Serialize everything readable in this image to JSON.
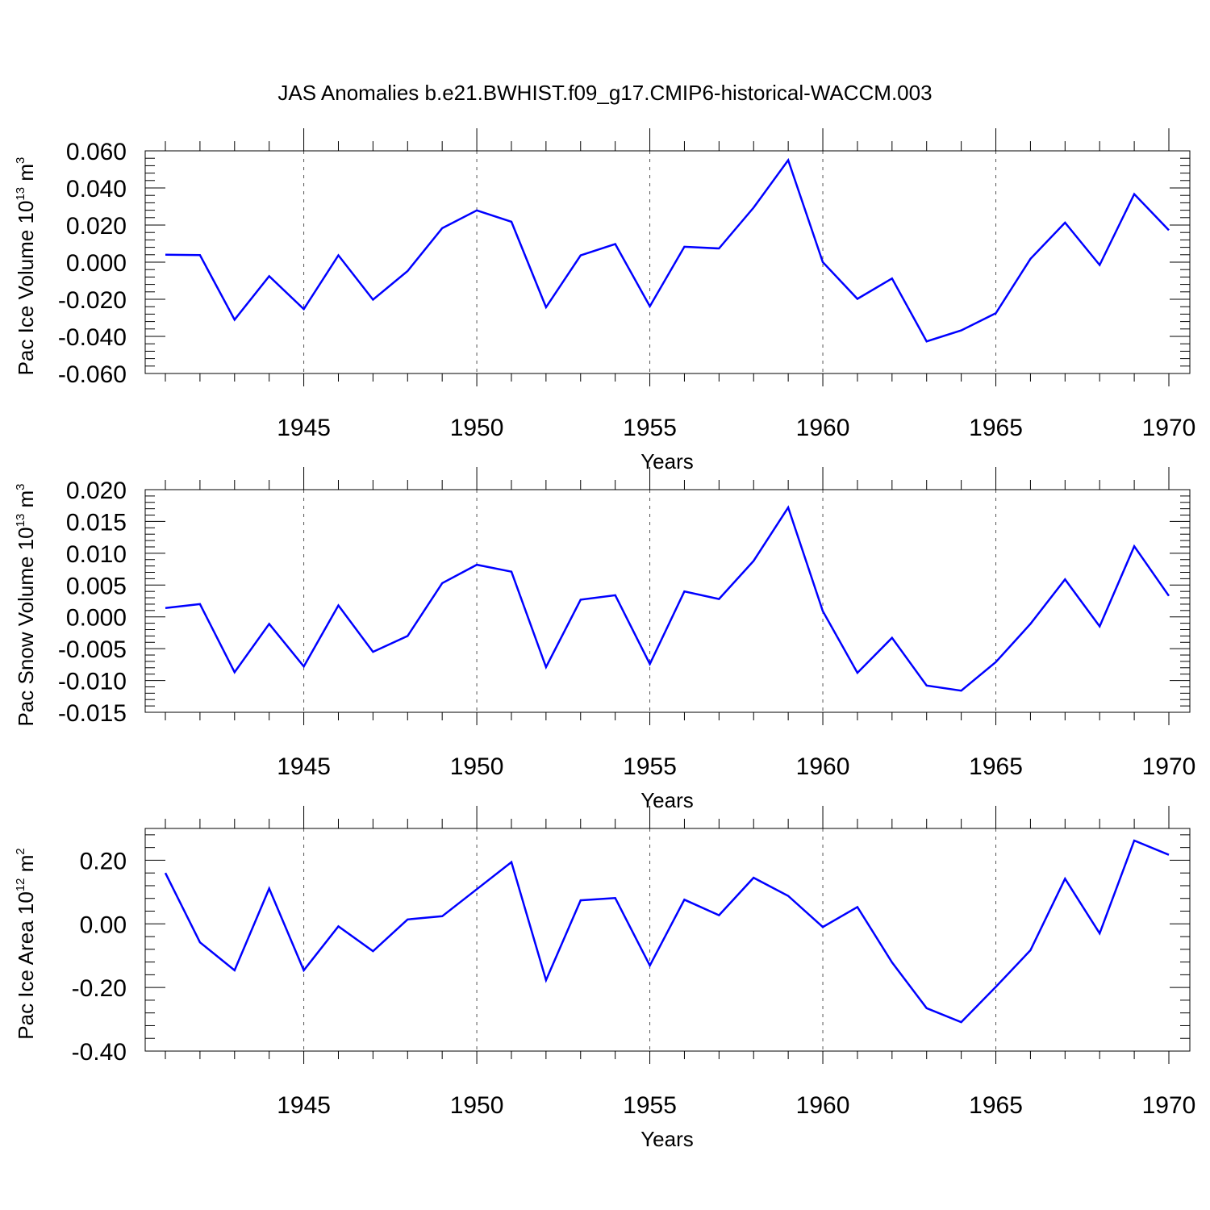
{
  "title": "JAS Anomalies b.e21.BWHIST.f09_g17.CMIP6-historical-WACCM.003",
  "chart_data": [
    {
      "type": "line",
      "ylabel": {
        "text": "Pac Ice Volume 10",
        "exp": "13",
        "unit": " m",
        "unit_exp": "3"
      },
      "xlabel": "Years",
      "xlim": [
        1941,
        1970
      ],
      "ylim": [
        -0.06,
        0.06
      ],
      "yticks": [
        -0.06,
        -0.04,
        -0.02,
        0.0,
        0.02,
        0.04,
        0.06
      ],
      "ytick_labels": [
        "-0.060",
        "-0.040",
        "-0.020",
        "0.000",
        "0.020",
        "0.040",
        "0.060"
      ],
      "xticks": [
        1945,
        1950,
        1955,
        1960,
        1965,
        1970
      ],
      "xtick_labels": [
        "1945",
        "1950",
        "1955",
        "1960",
        "1965",
        "1970"
      ],
      "vgrid": [
        1945,
        1950,
        1955,
        1960,
        1965
      ],
      "line_color": "#0000ff",
      "x": [
        1941,
        1942,
        1943,
        1944,
        1945,
        1946,
        1947,
        1948,
        1949,
        1950,
        1951,
        1952,
        1953,
        1954,
        1955,
        1956,
        1957,
        1958,
        1959,
        1960,
        1961,
        1962,
        1963,
        1964,
        1965,
        1966,
        1967,
        1968,
        1969,
        1970
      ],
      "y": [
        0.004,
        0.0038,
        -0.031,
        -0.0075,
        -0.0253,
        0.0037,
        -0.0202,
        -0.0048,
        0.0183,
        0.0279,
        0.0218,
        -0.0243,
        0.0037,
        0.0098,
        -0.0238,
        0.0083,
        0.0074,
        0.0294,
        0.055,
        0.0,
        -0.0198,
        -0.0088,
        -0.0427,
        -0.0368,
        -0.0275,
        0.0018,
        0.0213,
        -0.0015,
        0.0367,
        0.0172
      ]
    },
    {
      "type": "line",
      "ylabel": {
        "text": "Pac Snow Volume 10",
        "exp": "13",
        "unit": " m",
        "unit_exp": "3"
      },
      "xlabel": "Years",
      "xlim": [
        1941,
        1970
      ],
      "ylim": [
        -0.015,
        0.02
      ],
      "yticks": [
        -0.015,
        -0.01,
        -0.005,
        0.0,
        0.005,
        0.01,
        0.015,
        0.02
      ],
      "ytick_labels": [
        "-0.015",
        "-0.010",
        "-0.005",
        "0.000",
        "0.005",
        "0.010",
        "0.015",
        "0.020"
      ],
      "xticks": [
        1945,
        1950,
        1955,
        1960,
        1965,
        1970
      ],
      "xtick_labels": [
        "1945",
        "1950",
        "1955",
        "1960",
        "1965",
        "1970"
      ],
      "vgrid": [
        1945,
        1950,
        1955,
        1960,
        1965
      ],
      "line_color": "#0000ff",
      "x": [
        1941,
        1942,
        1943,
        1944,
        1945,
        1946,
        1947,
        1948,
        1949,
        1950,
        1951,
        1952,
        1953,
        1954,
        1955,
        1956,
        1957,
        1958,
        1959,
        1960,
        1961,
        1962,
        1963,
        1964,
        1965,
        1966,
        1967,
        1968,
        1969,
        1970
      ],
      "y": [
        0.0014,
        0.002,
        -0.0087,
        -0.0011,
        -0.0078,
        0.0018,
        -0.0055,
        -0.003,
        0.0053,
        0.0082,
        0.0071,
        -0.0079,
        0.0027,
        0.0034,
        -0.0074,
        0.004,
        0.0028,
        0.0088,
        0.0172,
        0.0009,
        -0.0088,
        -0.0033,
        -0.0108,
        -0.0116,
        -0.0071,
        -0.0011,
        0.0059,
        -0.0015,
        0.0111,
        0.0033
      ]
    },
    {
      "type": "line",
      "ylabel": {
        "text": "Pac Ice Area 10",
        "exp": "12",
        "unit": " m",
        "unit_exp": "2"
      },
      "xlabel": "Years",
      "xlim": [
        1941,
        1970
      ],
      "ylim": [
        -0.4,
        0.3
      ],
      "yticks": [
        -0.4,
        -0.2,
        0.0,
        0.2
      ],
      "ytick_labels": [
        "-0.40",
        "-0.20",
        "0.00",
        "0.20"
      ],
      "xticks": [
        1945,
        1950,
        1955,
        1960,
        1965,
        1970
      ],
      "xtick_labels": [
        "1945",
        "1950",
        "1955",
        "1960",
        "1965",
        "1970"
      ],
      "vgrid": [
        1945,
        1950,
        1955,
        1960,
        1965
      ],
      "line_color": "#0000ff",
      "x": [
        1941,
        1942,
        1943,
        1944,
        1945,
        1946,
        1947,
        1948,
        1949,
        1950,
        1951,
        1952,
        1953,
        1954,
        1955,
        1956,
        1957,
        1958,
        1959,
        1960,
        1961,
        1962,
        1963,
        1964,
        1965,
        1966,
        1967,
        1968,
        1969,
        1970
      ],
      "y": [
        0.16,
        -0.058,
        -0.146,
        0.111,
        -0.146,
        -0.008,
        -0.086,
        0.014,
        0.024,
        0.109,
        0.194,
        -0.177,
        0.074,
        0.081,
        -0.131,
        0.076,
        0.027,
        0.145,
        0.088,
        -0.01,
        0.053,
        -0.121,
        -0.265,
        -0.309,
        -0.198,
        -0.083,
        0.142,
        -0.03,
        0.262,
        0.217
      ]
    }
  ]
}
